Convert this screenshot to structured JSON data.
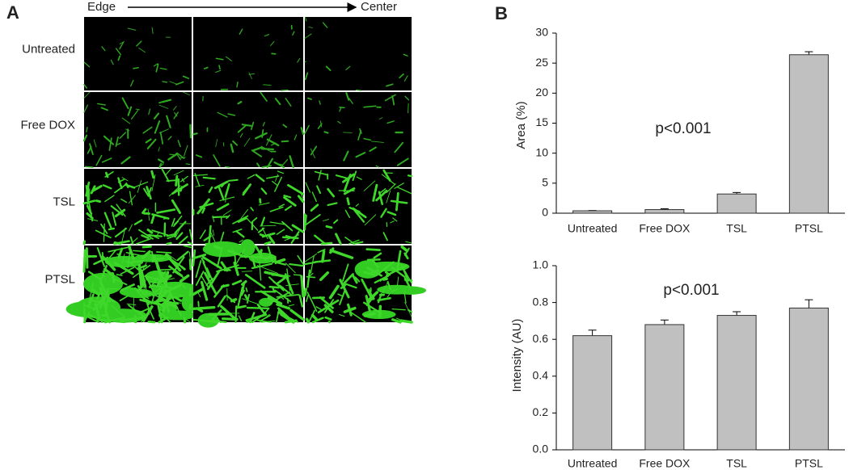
{
  "panel_a": {
    "label": "A",
    "edge": "Edge",
    "center": "Center",
    "rows": [
      "Untreated",
      "Free DOX",
      "TSL",
      "PTSL"
    ]
  },
  "chart_data": [
    {
      "type": "bar",
      "panel_label": "B",
      "ylabel": "Area (%)",
      "annotation": "p<0.001",
      "categories": [
        "Untreated",
        "Free DOX",
        "TSL",
        "PTSL"
      ],
      "values": [
        0.4,
        0.6,
        3.2,
        26.4
      ],
      "errors": [
        0.05,
        0.15,
        0.25,
        0.5
      ],
      "color": "#c0c0c0",
      "ylim": [
        0,
        30
      ],
      "yticks": [
        0,
        5,
        10,
        15,
        20,
        25,
        30
      ]
    },
    {
      "type": "bar",
      "ylabel": "Intensity (AU)",
      "annotation": "p<0.001",
      "categories": [
        "Untreated",
        "Free DOX",
        "TSL",
        "PTSL"
      ],
      "values": [
        0.62,
        0.68,
        0.73,
        0.77
      ],
      "errors": [
        0.03,
        0.025,
        0.02,
        0.045
      ],
      "color": "#c0c0c0",
      "ylim": [
        0,
        1
      ],
      "yticks": [
        {
          "value": 0,
          "label": "0.0"
        },
        {
          "value": 0.2,
          "label": "0.2"
        },
        {
          "value": 0.4,
          "label": "0.4"
        },
        {
          "value": 0.6,
          "label": "0.6"
        },
        {
          "value": 0.8,
          "label": "0.8"
        },
        {
          "value": 1,
          "label": "1.0"
        }
      ]
    }
  ]
}
